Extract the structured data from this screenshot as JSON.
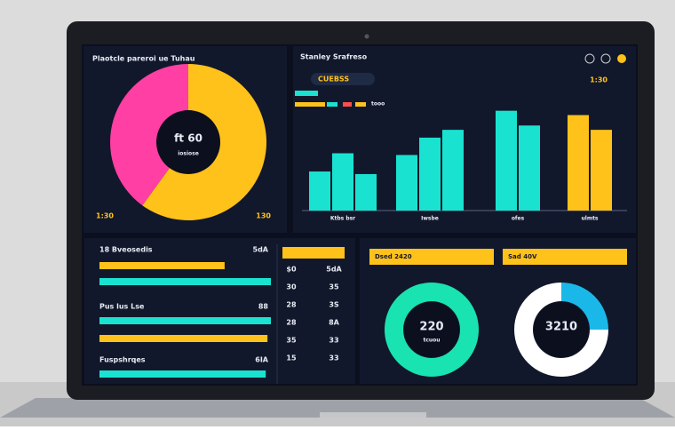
{
  "chart_data": [
    {
      "type": "pie",
      "title": "Plaotcle pareroi ue Tuhau",
      "center_label": "ft 60",
      "center_sub": "iosiose",
      "corner_labels": [
        "1:30",
        "130"
      ],
      "values": [
        60,
        40
      ],
      "colors": [
        "#ffc21a",
        "#ff3fa4"
      ]
    },
    {
      "type": "bar",
      "title": "Stanley Srafreso",
      "badge": "CUEBSS",
      "legend": "tooo",
      "corner_label": "1:30",
      "categories": [
        "Ktbs bsr",
        "Iwsbe",
        "ofes",
        "ulmts"
      ],
      "groups": [
        {
          "color": "#19e3d0",
          "values": [
            45,
            66,
            42
          ]
        },
        {
          "color": "#19e3d0",
          "values": [
            64,
            84,
            93
          ]
        },
        {
          "color": "#19e3d0",
          "values": [
            115,
            98
          ]
        },
        {
          "color": "#ffc21a",
          "values": [
            110,
            93
          ]
        }
      ],
      "ylim": [
        0,
        130
      ]
    },
    {
      "type": "hbar",
      "row_labels": [
        "18 Bveosedis",
        "Pus lus Lse",
        "Fuspshrqes"
      ],
      "row_values": [
        "5dA",
        "88",
        "6IA"
      ],
      "bars": [
        {
          "color": "#ffc21a",
          "value": 73
        },
        {
          "color": "#19e3d0",
          "value": 100
        },
        {
          "color": "#19e3d0",
          "value": 100
        },
        {
          "color": "#ffc21a",
          "value": 98
        },
        {
          "color": "#19e3d0",
          "value": 97
        }
      ],
      "xlim": [
        0,
        100
      ],
      "col_a": [
        "$0",
        "30",
        "28",
        "28",
        "35",
        "15"
      ],
      "col_b": [
        "5dA",
        "35",
        "3S",
        "8A",
        "33",
        "33"
      ]
    },
    {
      "type": "donut",
      "title": "Dsed 2420",
      "center_label": "220",
      "center_sub": "tcuou",
      "values": [
        100
      ],
      "colors": [
        "#19e3b0"
      ]
    },
    {
      "type": "donut",
      "title": "Sad 40V",
      "center_label": "3210",
      "values": [
        25,
        75
      ],
      "colors": [
        "#1ab8e8",
        "#ffffff"
      ]
    }
  ]
}
